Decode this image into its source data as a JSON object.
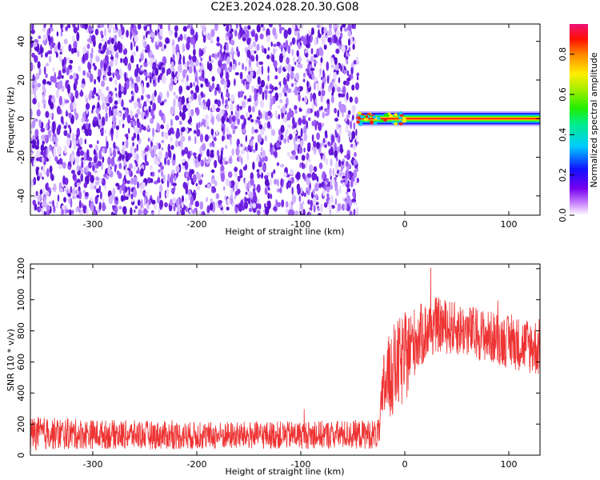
{
  "title": "C2E3.2024.028.20.30.G08",
  "chart_data": [
    {
      "type": "heatmap",
      "xlabel": "Height of straight line (km)",
      "ylabel": "Frequency (Hz)",
      "xlim": [
        -360,
        130
      ],
      "ylim": [
        -50,
        49
      ],
      "x_ticks": [
        "-300",
        "-200",
        "-100",
        "0",
        "100"
      ],
      "y_ticks": [
        "-40",
        "-20",
        "0",
        "20",
        "40"
      ],
      "colorbar": {
        "label": "Normalized spectral amplitude",
        "range": [
          0,
          0.95
        ],
        "ticks": [
          "0.0",
          "0.2",
          "0.4",
          "0.6",
          "0.8"
        ]
      },
      "regions": [
        {
          "x_range": [
            -360,
            -45
          ],
          "description_values": {
            "freq_range": [
              -50,
              49
            ],
            "amplitude_range": [
              0.0,
              0.1
            ]
          }
        },
        {
          "x_range": [
            -45,
            130
          ],
          "description_values": {
            "freq_center": 0,
            "freq_halfwidth": 3,
            "amplitude_peak": 0.9
          }
        }
      ],
      "grid": false
    },
    {
      "type": "line",
      "xlabel": "Height of straight line (km)",
      "ylabel": "SNR (10 * v/v)",
      "xlim": [
        -360,
        130
      ],
      "ylim": [
        0,
        1230
      ],
      "x_ticks": [
        "-300",
        "-200",
        "-100",
        "0",
        "100"
      ],
      "y_ticks": [
        "0",
        "200",
        "400",
        "600",
        "800",
        "1000",
        "1200"
      ],
      "series": [
        {
          "color": "#ee3333",
          "envelope": [
            {
              "x": -360,
              "mean": 140,
              "spread": 110
            },
            {
              "x": -300,
              "mean": 135,
              "spread": 95
            },
            {
              "x": -200,
              "mean": 125,
              "spread": 90
            },
            {
              "x": -100,
              "mean": 130,
              "spread": 90
            },
            {
              "x": -25,
              "mean": 135,
              "spread": 95
            },
            {
              "x": -20,
              "mean": 450,
              "spread": 250
            },
            {
              "x": -10,
              "mean": 550,
              "spread": 300
            },
            {
              "x": 0,
              "mean": 620,
              "spread": 300
            },
            {
              "x": 10,
              "mean": 740,
              "spread": 220
            },
            {
              "x": 30,
              "mean": 840,
              "spread": 180
            },
            {
              "x": 60,
              "mean": 800,
              "spread": 170
            },
            {
              "x": 100,
              "mean": 730,
              "spread": 170
            },
            {
              "x": 130,
              "mean": 690,
              "spread": 190
            }
          ]
        }
      ],
      "grid": false
    }
  ]
}
